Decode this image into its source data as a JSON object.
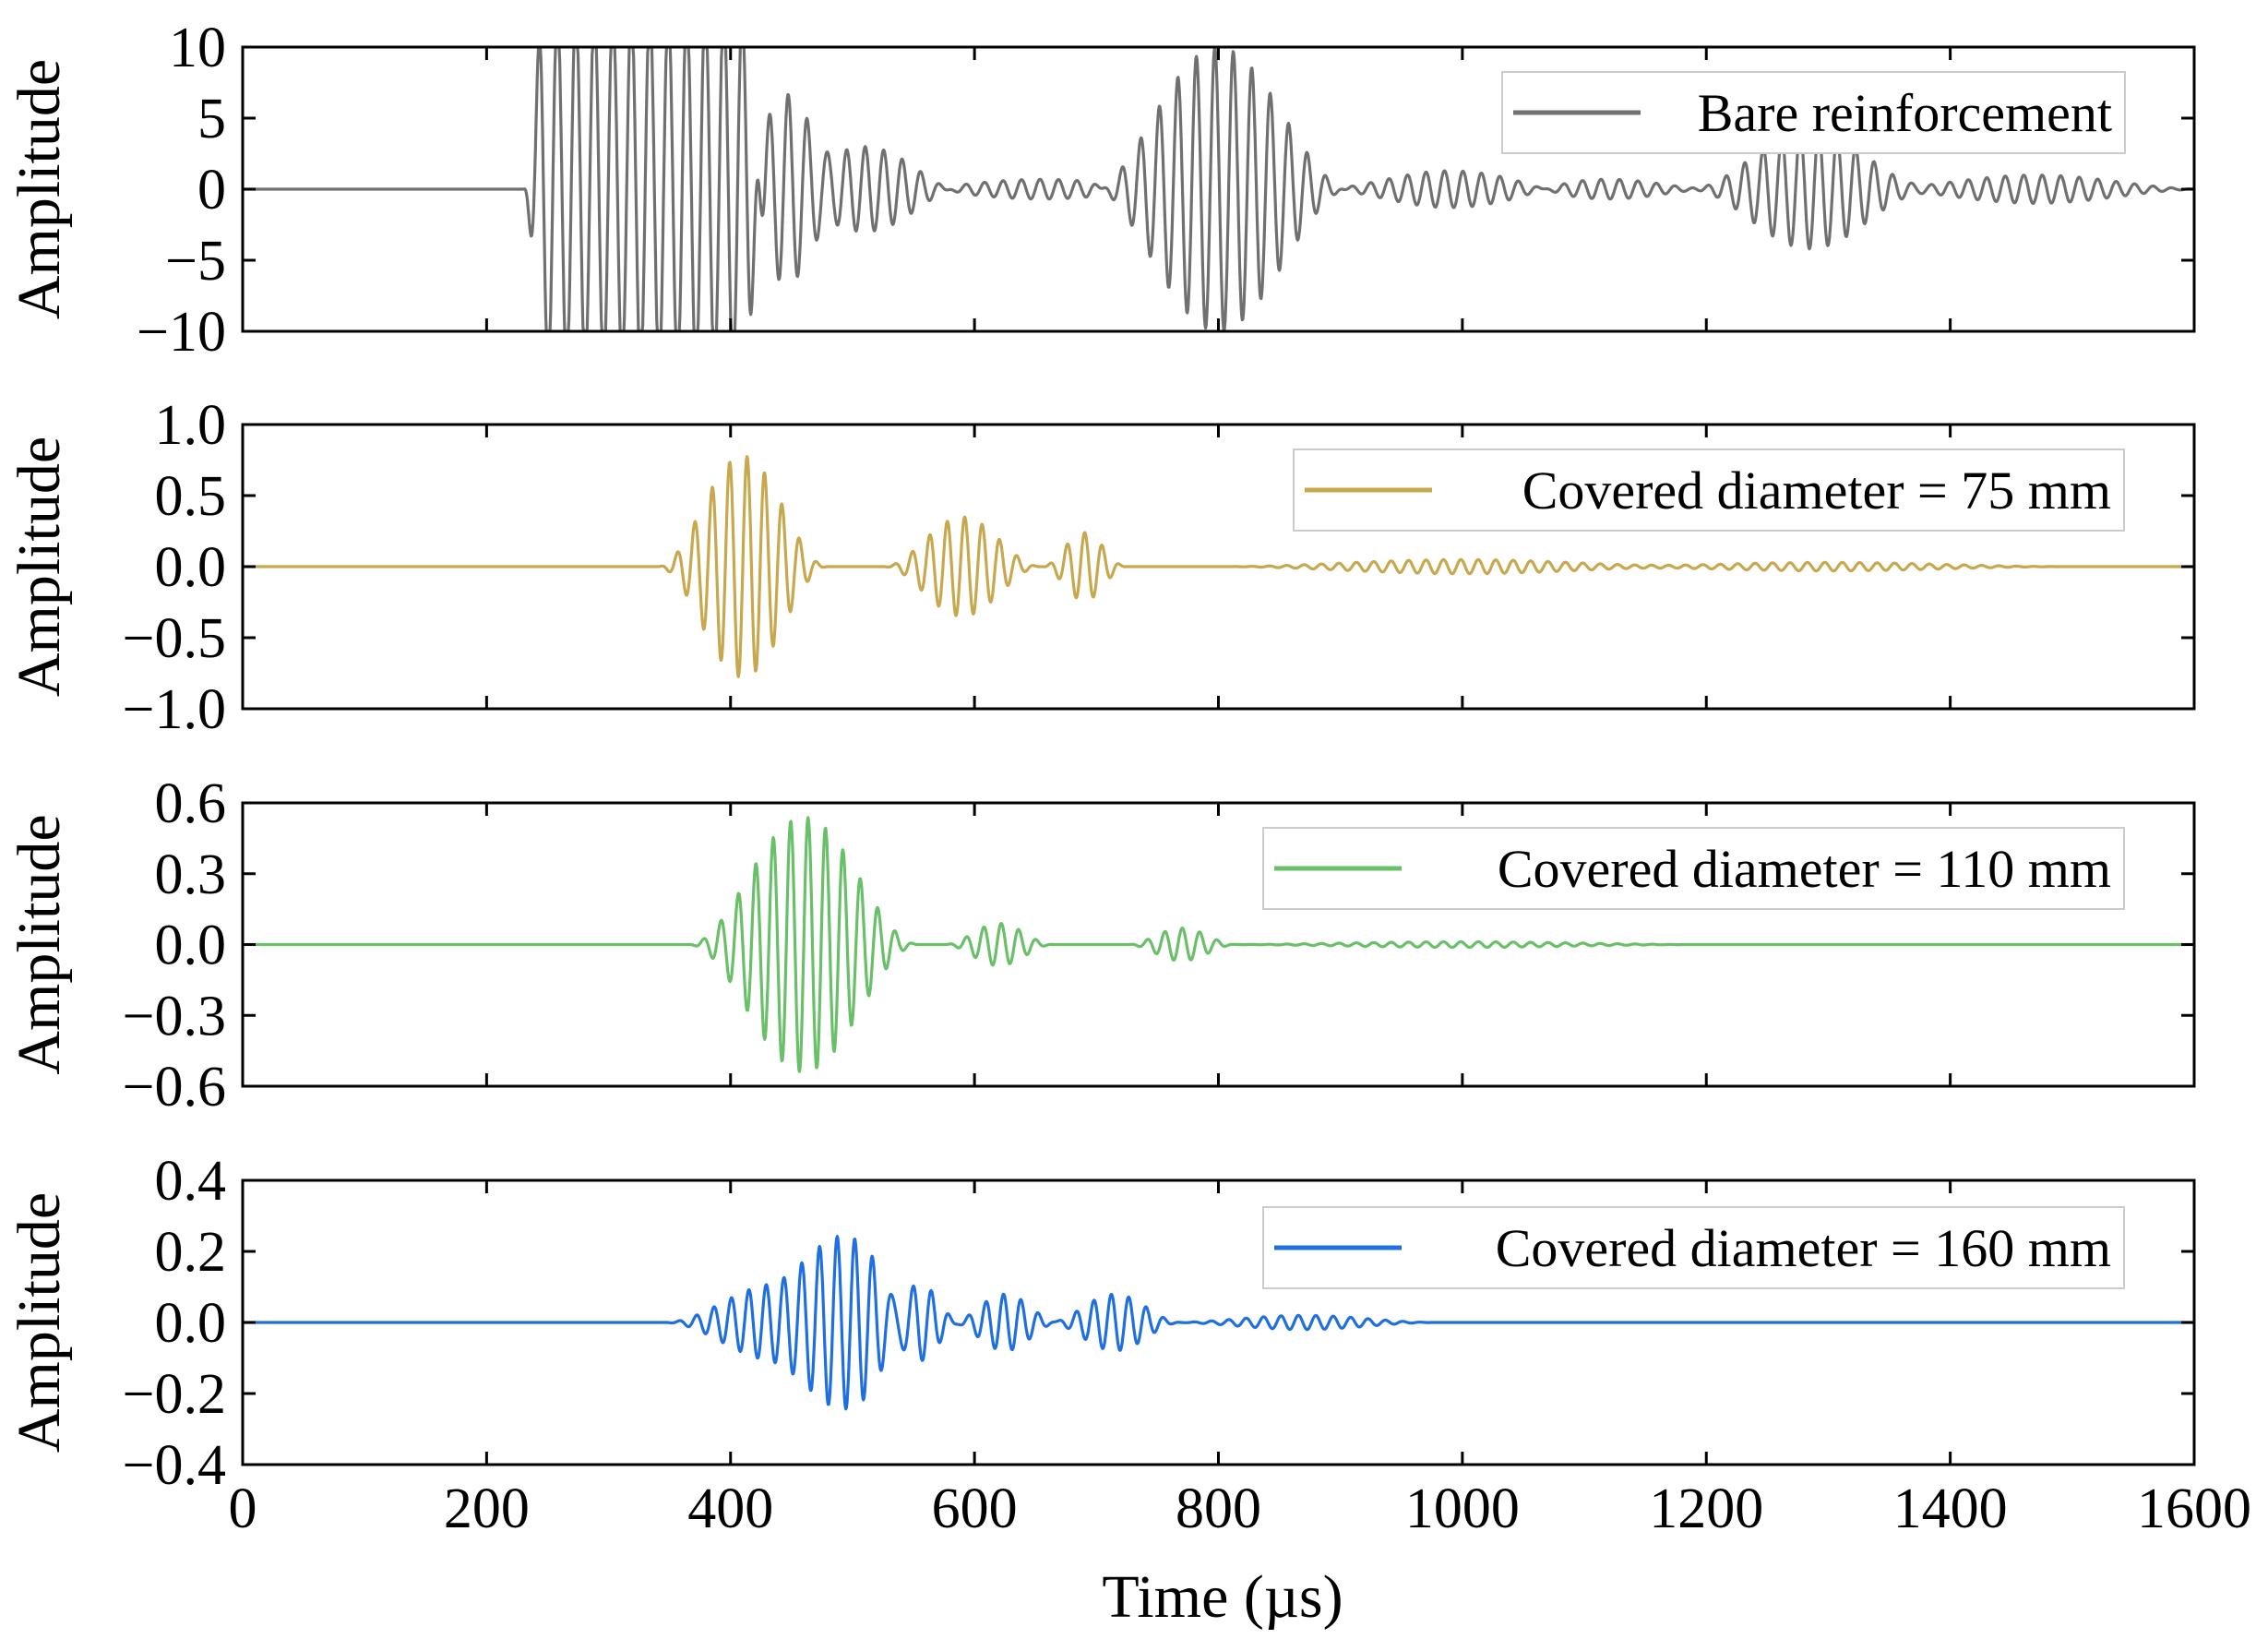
{
  "figure": {
    "xlabel": "Time (µs)",
    "xlim": [
      0,
      1600
    ],
    "xticks": [
      0,
      200,
      400,
      600,
      800,
      1000,
      1200,
      1400,
      1600
    ],
    "xtick_labels": [
      "0",
      "200",
      "400",
      "600",
      "800",
      "1000",
      "1200",
      "1400",
      "1600"
    ]
  },
  "chart_data": [
    {
      "type": "line",
      "ylabel": "Amplitude",
      "xlabel": "Time (µs)",
      "xlim": [
        0,
        1600
      ],
      "ylim": [
        -10,
        10
      ],
      "yticks": [
        -10,
        -5,
        0,
        5,
        10
      ],
      "ytick_labels": [
        "−10",
        "−5",
        "0",
        "5",
        "10"
      ],
      "legend_position": "top-right",
      "series": [
        {
          "name": "Bare reinforcement",
          "color": "#707070",
          "frequency_cycles_per_us": 0.066,
          "clip": true,
          "packets": [
            {
              "center_us": 330,
              "halfwidth_us": 100,
              "peak": 13,
              "edge": "flat"
            },
            {
              "center_us": 445,
              "halfwidth_us": 45,
              "peak": 6.5,
              "edge": "hann"
            },
            {
              "center_us": 510,
              "halfwidth_us": 85,
              "peak": 3,
              "edge": "hann"
            },
            {
              "center_us": 655,
              "halfwidth_us": 125,
              "peak": 0.7,
              "edge": "hann"
            },
            {
              "center_us": 800,
              "halfwidth_us": 110,
              "peak": 10,
              "edge": "hann"
            },
            {
              "center_us": 990,
              "halfwidth_us": 110,
              "peak": 1.3,
              "edge": "hann"
            },
            {
              "center_us": 1120,
              "halfwidth_us": 90,
              "peak": 0.7,
              "edge": "hann"
            },
            {
              "center_us": 1285,
              "halfwidth_us": 100,
              "peak": 4.2,
              "edge": "hann"
            },
            {
              "center_us": 1470,
              "halfwidth_us": 140,
              "peak": 1.0,
              "edge": "hann"
            }
          ]
        }
      ]
    },
    {
      "type": "line",
      "ylabel": "Amplitude",
      "xlabel": "Time (µs)",
      "xlim": [
        0,
        1600
      ],
      "ylim": [
        -1.0,
        1.0
      ],
      "yticks": [
        -1.0,
        -0.5,
        0.0,
        0.5,
        1.0
      ],
      "ytick_labels": [
        "−1.0",
        "−0.5",
        "0.0",
        "0.5",
        "1.0"
      ],
      "legend_position": "top-right",
      "series": [
        {
          "name": "Covered diameter = 75 mm",
          "color": "#c8a84e",
          "frequency_cycles_per_us": 0.07,
          "clip": false,
          "packets": [
            {
              "center_us": 410,
              "halfwidth_us": 70,
              "peak": 0.78,
              "edge": "hann"
            },
            {
              "center_us": 590,
              "halfwidth_us": 65,
              "peak": 0.35,
              "edge": "hann"
            },
            {
              "center_us": 690,
              "halfwidth_us": 35,
              "peak": 0.24,
              "edge": "hann"
            },
            {
              "center_us": 1000,
              "halfwidth_us": 200,
              "peak": 0.05,
              "edge": "hann"
            },
            {
              "center_us": 1300,
              "halfwidth_us": 200,
              "peak": 0.03,
              "edge": "hann"
            }
          ]
        }
      ]
    },
    {
      "type": "line",
      "ylabel": "Amplitude",
      "xlabel": "Time (µs)",
      "xlim": [
        0,
        1600
      ],
      "ylim": [
        -0.6,
        0.6
      ],
      "yticks": [
        -0.6,
        -0.3,
        0.0,
        0.3,
        0.6
      ],
      "ytick_labels": [
        "−0.6",
        "−0.3",
        "0.0",
        "0.3",
        "0.6"
      ],
      "legend_position": "top-right",
      "series": [
        {
          "name": "Covered diameter = 110 mm",
          "color": "#6abf69",
          "frequency_cycles_per_us": 0.07,
          "clip": false,
          "packets": [
            {
              "center_us": 460,
              "halfwidth_us": 95,
              "peak": 0.54,
              "edge": "hann"
            },
            {
              "center_us": 620,
              "halfwidth_us": 45,
              "peak": 0.09,
              "edge": "hann"
            },
            {
              "center_us": 770,
              "halfwidth_us": 45,
              "peak": 0.07,
              "edge": "hann"
            },
            {
              "center_us": 1000,
              "halfwidth_us": 200,
              "peak": 0.012,
              "edge": "hann"
            }
          ]
        }
      ]
    },
    {
      "type": "line",
      "ylabel": "Amplitude",
      "xlabel": "Time (µs)",
      "xlim": [
        0,
        1600
      ],
      "ylim": [
        -0.4,
        0.4
      ],
      "yticks": [
        -0.4,
        -0.2,
        0.0,
        0.2,
        0.4
      ],
      "ytick_labels": [
        "−0.4",
        "−0.2",
        "0.0",
        "0.2",
        "0.4"
      ],
      "legend_position": "top-right",
      "series": [
        {
          "name": "Covered diameter = 160 mm",
          "color": "#1f6fe0",
          "frequency_cycles_per_us": 0.07,
          "clip": false,
          "packets": [
            {
              "center_us": 440,
              "halfwidth_us": 95,
              "peak": 0.11,
              "edge": "hann"
            },
            {
              "center_us": 500,
              "halfwidth_us": 70,
              "peak": 0.21,
              "edge": "hann"
            },
            {
              "center_us": 550,
              "halfwidth_us": 40,
              "peak": 0.13,
              "edge": "hann"
            },
            {
              "center_us": 625,
              "halfwidth_us": 45,
              "peak": 0.08,
              "edge": "hann"
            },
            {
              "center_us": 715,
              "halfwidth_us": 55,
              "peak": 0.08,
              "edge": "hann"
            },
            {
              "center_us": 870,
              "halfwidth_us": 110,
              "peak": 0.02,
              "edge": "hann"
            }
          ]
        }
      ]
    }
  ]
}
